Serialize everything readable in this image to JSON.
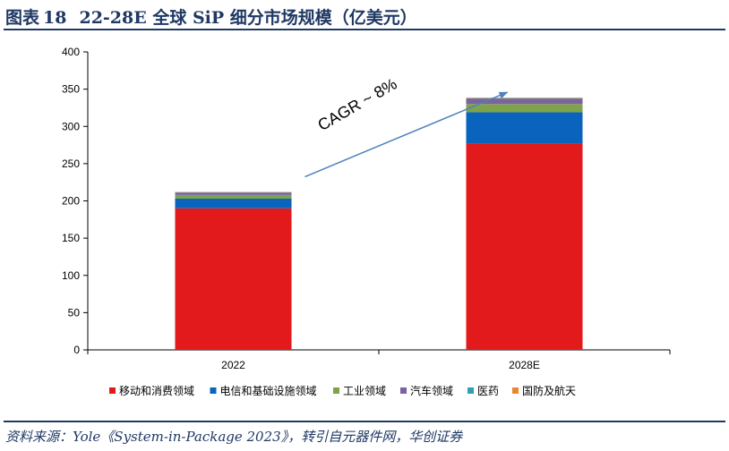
{
  "header": {
    "figure_label": "图表",
    "figure_number": "18",
    "title": "22-28E 全球 SiP 细分市场规模（亿美元）"
  },
  "source": "资料来源：Yole《System-in-Package 2023》，转引自元器件网，华创证券",
  "chart_data": {
    "type": "bar",
    "stacked": true,
    "categories": [
      "2022",
      "2028E"
    ],
    "ylim": [
      0,
      400
    ],
    "yticks": [
      0,
      50,
      100,
      150,
      200,
      250,
      300,
      350,
      400
    ],
    "grid": false,
    "legend_position": "bottom",
    "series": [
      {
        "name": "移动和消费领域",
        "color": "#e31a1c",
        "values": [
          190,
          277
        ]
      },
      {
        "name": "电信和基础设施领域",
        "color": "#0a63bd",
        "values": [
          13,
          42
        ]
      },
      {
        "name": "工业领域",
        "color": "#7fa34a",
        "values": [
          5,
          11
        ]
      },
      {
        "name": "汽车领域",
        "color": "#7b63a0",
        "values": [
          3,
          7
        ]
      },
      {
        "name": "医药",
        "color": "#2fa0b3",
        "values": [
          0.5,
          0.8
        ]
      },
      {
        "name": "国防及航天",
        "color": "#e8862e",
        "values": [
          0.5,
          0.8
        ]
      }
    ],
    "annotation": {
      "text": "CAGR ~ 8%",
      "arrow_color": "#4f81bd"
    }
  }
}
